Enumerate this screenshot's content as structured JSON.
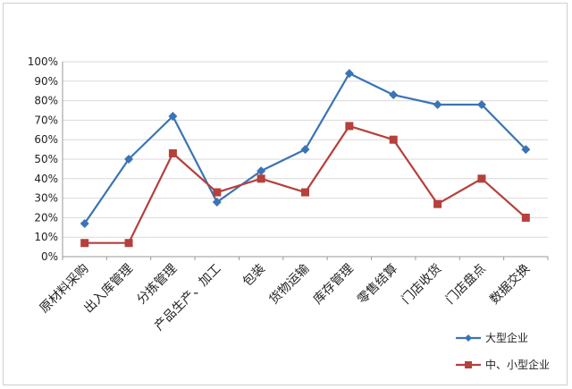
{
  "chart_data": {
    "type": "line",
    "categories": [
      "原材料采购",
      "出入库管理",
      "分拣管理",
      "产品生产、加工",
      "包装",
      "货物运输",
      "库存管理",
      "零售结算",
      "门店收货",
      "门店盘点",
      "数据交换"
    ],
    "series": [
      {
        "name": "大型企业",
        "color": "#3a74b4",
        "marker": "diamond",
        "values": [
          0.17,
          0.5,
          0.72,
          0.28,
          0.44,
          0.55,
          0.94,
          0.83,
          0.78,
          0.78,
          0.55
        ]
      },
      {
        "name": "中、小型企业",
        "color": "#b5403c",
        "marker": "square",
        "values": [
          0.07,
          0.07,
          0.53,
          0.33,
          0.4,
          0.33,
          0.67,
          0.6,
          0.27,
          0.4,
          0.2
        ]
      }
    ],
    "yticks": [
      "0%",
      "10%",
      "20%",
      "30%",
      "40%",
      "50%",
      "60%",
      "70%",
      "80%",
      "90%",
      "100%"
    ],
    "ylim": [
      0,
      1
    ],
    "grid": true,
    "legend": "bottom-right"
  }
}
